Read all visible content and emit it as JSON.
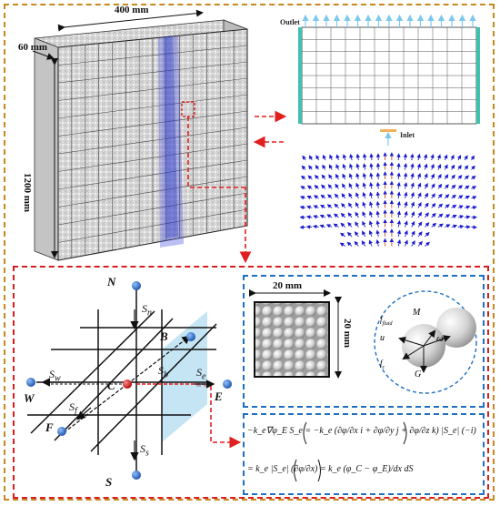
{
  "block": {
    "length_label": "400 mm",
    "width_label": "60 mm",
    "height_label": "1200 mm"
  },
  "flow_panel": {
    "outlet_label": "Outlet",
    "inlet_label": "Inlet"
  },
  "stencil": {
    "nodes": {
      "N": "N",
      "S": "S",
      "W": "W",
      "E": "E",
      "F": "F",
      "B": "B",
      "C": "C"
    },
    "faces": {
      "Sn": "S",
      "Sn_sub": "n",
      "Ss": "S",
      "Ss_sub": "s",
      "Sw": "S",
      "Sw_sub": "w",
      "Se": "S",
      "Se_sub": "e",
      "Sf": "S",
      "Sf_sub": "f",
      "Sb": "S",
      "Sb_sub": "b"
    }
  },
  "sample": {
    "width_label": "20 mm",
    "height_label": "20 mm"
  },
  "particle_forces": {
    "f_fluid": "f",
    "f_fluid_sub": "fluid",
    "M": "M",
    "u": "u",
    "omega": "ω",
    "f_c": "f",
    "f_c_sub": "c",
    "G": "G"
  },
  "equations": {
    "line1": "−k_e∇φ_E S_e = −k_e (∂φ/∂x i + ∂φ/∂y j + ∂φ/∂z k) |S_e| (−i)",
    "line2": "= k_e |S_e| (∂φ/∂x) = k_e (φ_C − φ_E)/dx dS"
  },
  "colors": {
    "outer_frame": "#c8871f",
    "inner_frame": "#d91e1e",
    "blue_frame": "#1f6fc1",
    "arrow_red": "#e02020",
    "vector_blue": "#1a1ad0",
    "outlet_arrow": "#7ec8f0",
    "inlet_bar": "#f1b25c"
  }
}
